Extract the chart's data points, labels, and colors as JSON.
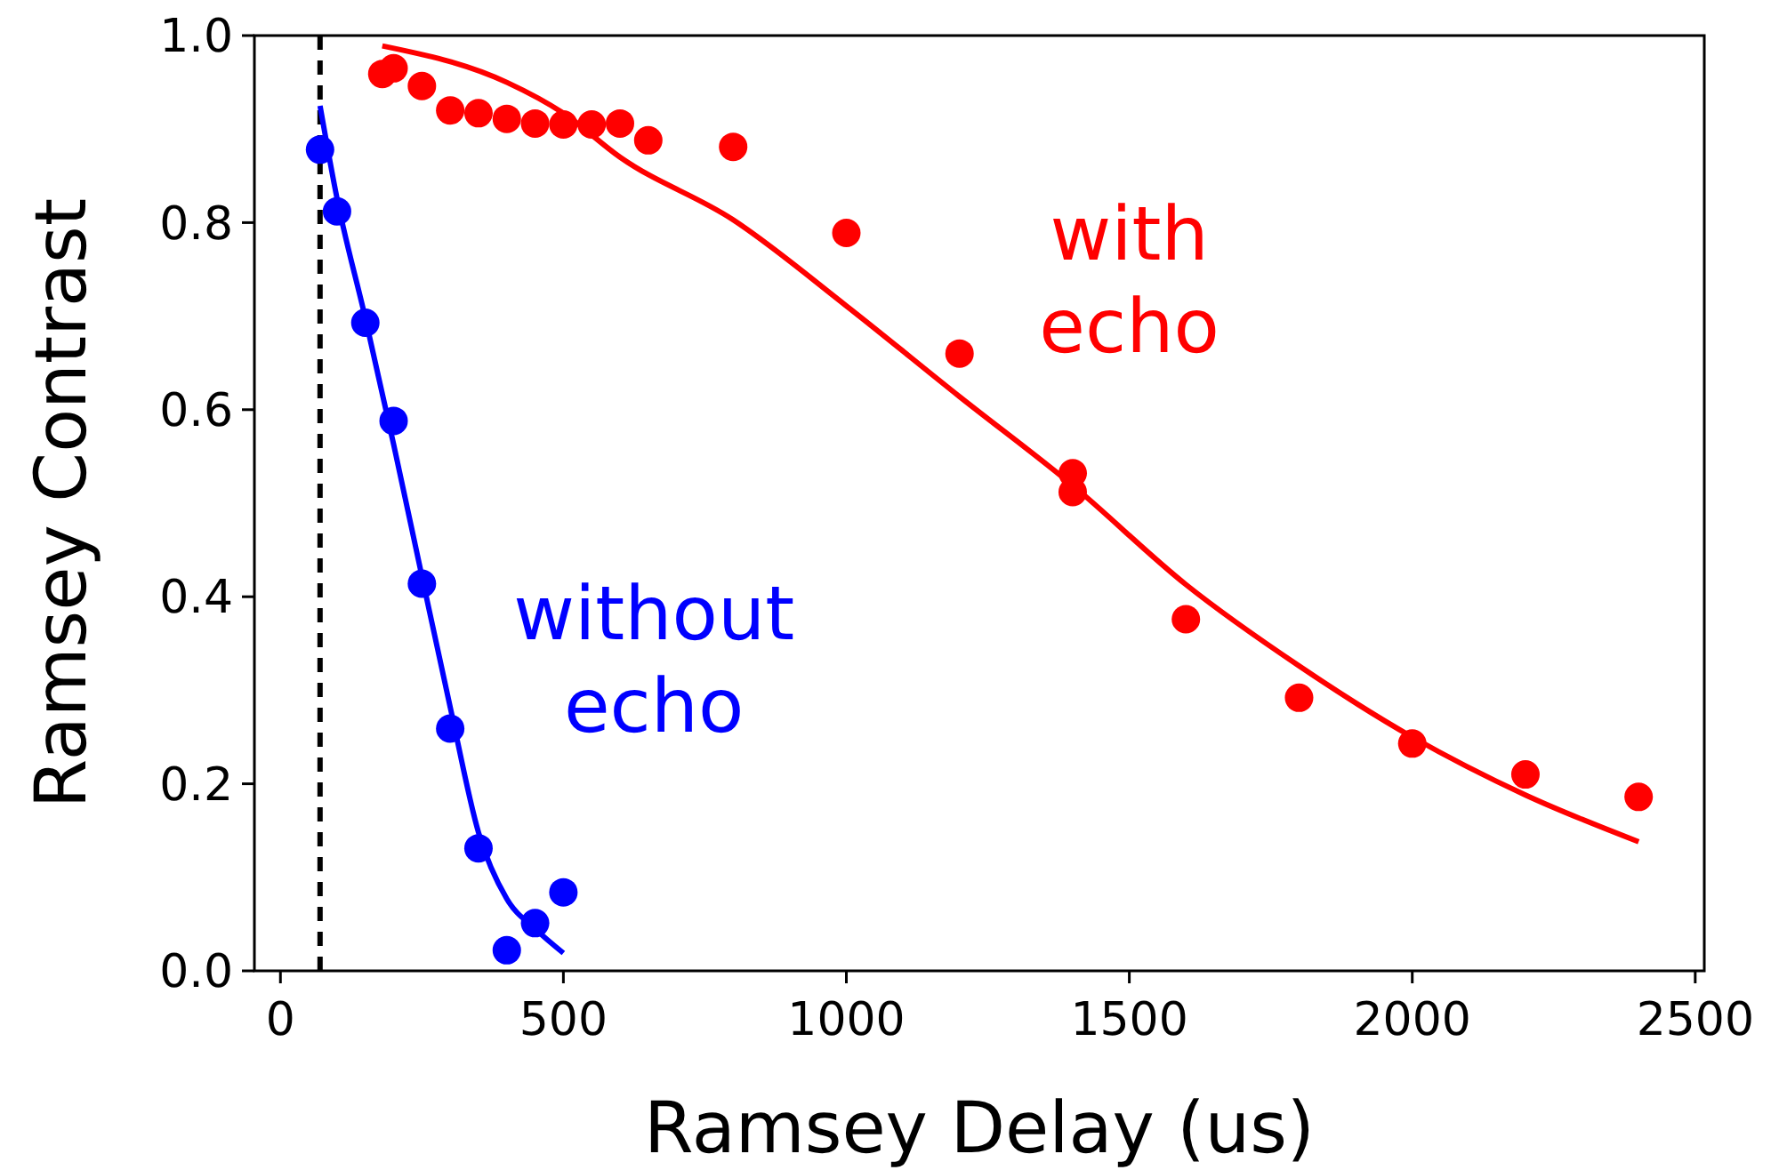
{
  "chart_data": {
    "type": "scatter",
    "xlabel": "Ramsey Delay (us)",
    "ylabel": "Ramsey Contrast",
    "xlim": [
      -46,
      2516
    ],
    "xticks": [
      0,
      500,
      1000,
      1500,
      2000,
      2500
    ],
    "ylim": [
      0,
      1
    ],
    "yticks": [
      {
        "value": 0,
        "label": "0.0"
      },
      0.2,
      0.4,
      0.6,
      0.8,
      {
        "value": 1,
        "label": "1.0"
      }
    ],
    "grid": false,
    "marker": "circle",
    "ref_lines": [
      {
        "axis": "x",
        "value": 70,
        "color": "#000000",
        "line_style": "dashed"
      }
    ],
    "series": [
      {
        "name": "without echo",
        "color": "#0000ff",
        "x": [
          70,
          100,
          150,
          200,
          250,
          300,
          350,
          400,
          450,
          500
        ],
        "values": [
          0.878,
          0.812,
          0.693,
          0.588,
          0.414,
          0.259,
          0.131,
          0.022,
          0.051,
          0.084
        ]
      },
      {
        "type": "line",
        "color": "#0000ff",
        "marker": "none",
        "x": [
          70,
          100,
          150,
          200,
          250,
          300,
          350,
          400,
          450,
          500
        ],
        "values": [
          0.925,
          0.826,
          0.698,
          0.563,
          0.422,
          0.282,
          0.148,
          0.077,
          0.045,
          0.019
        ]
      },
      {
        "name": "with echo",
        "color": "#ff0000",
        "x": [
          180,
          200,
          250,
          300,
          350,
          400,
          450,
          500,
          550,
          600,
          650,
          800,
          1000,
          1200,
          1400,
          1400,
          1600,
          1800,
          2000,
          2200,
          2400
        ],
        "values": [
          0.959,
          0.965,
          0.946,
          0.92,
          0.917,
          0.911,
          0.906,
          0.905,
          0.905,
          0.906,
          0.888,
          0.881,
          0.789,
          0.66,
          0.532,
          0.512,
          0.376,
          0.292,
          0.243,
          0.21,
          0.186
        ],
        "errors": [
          null,
          null,
          null,
          null,
          null,
          null,
          null,
          null,
          null,
          null,
          null,
          null,
          null,
          null,
          null,
          null,
          null,
          null,
          null,
          null,
          0.01
        ]
      },
      {
        "type": "line",
        "color": "#ff0000",
        "marker": "none",
        "x": [
          180,
          400,
          500,
          600,
          800,
          1000,
          1200,
          1400,
          1600,
          1800,
          2000,
          2200,
          2400
        ],
        "values": [
          0.989,
          0.95,
          0.917,
          0.87,
          0.803,
          0.711,
          0.614,
          0.519,
          0.413,
          0.326,
          0.25,
          0.188,
          0.138
        ]
      }
    ]
  }
}
